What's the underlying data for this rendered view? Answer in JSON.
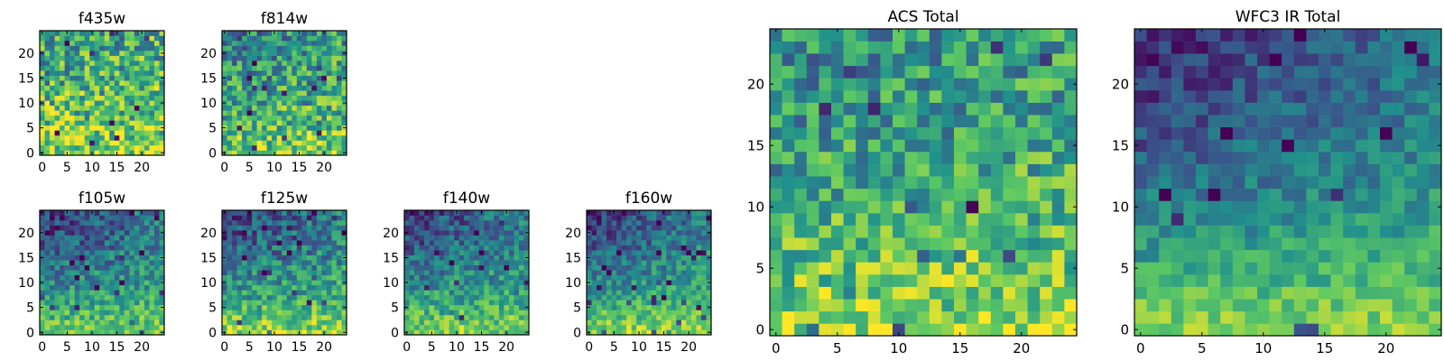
{
  "palette": {
    "colormap": "viridis",
    "stops": [
      "#440154",
      "#3b528b",
      "#21918c",
      "#5ec962",
      "#fde725"
    ]
  },
  "chart_data": [
    {
      "type": "heatmap",
      "title": "f435w",
      "grid_size": 25,
      "xlim": [
        0,
        25
      ],
      "ylim": [
        0,
        25
      ],
      "xticks": [
        "0",
        "5",
        "10",
        "15",
        "20"
      ],
      "yticks": [
        "0",
        "5",
        "10",
        "15",
        "20"
      ],
      "pattern": {
        "base": 0.62,
        "bottom_boost": 0.22,
        "topleft_drop": 0.05,
        "noise": 0.32,
        "seed": 11
      }
    },
    {
      "type": "heatmap",
      "title": "f814w",
      "grid_size": 25,
      "xlim": [
        0,
        25
      ],
      "ylim": [
        0,
        25
      ],
      "xticks": [
        "0",
        "5",
        "10",
        "15",
        "20"
      ],
      "yticks": [
        "0",
        "5",
        "10",
        "15",
        "20"
      ],
      "pattern": {
        "base": 0.56,
        "bottom_boost": 0.25,
        "topleft_drop": 0.12,
        "noise": 0.3,
        "seed": 23
      }
    },
    {
      "type": "heatmap",
      "title": "f105w",
      "grid_size": 25,
      "xlim": [
        0,
        25
      ],
      "ylim": [
        0,
        25
      ],
      "xticks": [
        "0",
        "5",
        "10",
        "15",
        "20"
      ],
      "yticks": [
        "0",
        "5",
        "10",
        "15",
        "20"
      ],
      "pattern": {
        "base": 0.42,
        "bottom_boost": 0.38,
        "topleft_drop": 0.25,
        "noise": 0.2,
        "seed": 37
      }
    },
    {
      "type": "heatmap",
      "title": "f125w",
      "grid_size": 25,
      "xlim": [
        0,
        25
      ],
      "ylim": [
        0,
        25
      ],
      "xticks": [
        "0",
        "5",
        "10",
        "15",
        "20"
      ],
      "yticks": [
        "0",
        "5",
        "10",
        "15",
        "20"
      ],
      "pattern": {
        "base": 0.44,
        "bottom_boost": 0.4,
        "topleft_drop": 0.25,
        "noise": 0.22,
        "seed": 41
      }
    },
    {
      "type": "heatmap",
      "title": "f140w",
      "grid_size": 25,
      "xlim": [
        0,
        25
      ],
      "ylim": [
        0,
        25
      ],
      "xticks": [
        "0",
        "5",
        "10",
        "15",
        "20"
      ],
      "yticks": [
        "0",
        "5",
        "10",
        "15",
        "20"
      ],
      "pattern": {
        "base": 0.43,
        "bottom_boost": 0.38,
        "topleft_drop": 0.25,
        "noise": 0.2,
        "seed": 53
      }
    },
    {
      "type": "heatmap",
      "title": "f160w",
      "grid_size": 25,
      "xlim": [
        0,
        25
      ],
      "ylim": [
        0,
        25
      ],
      "xticks": [
        "0",
        "5",
        "10",
        "15",
        "20"
      ],
      "yticks": [
        "0",
        "5",
        "10",
        "15",
        "20"
      ],
      "pattern": {
        "base": 0.44,
        "bottom_boost": 0.4,
        "topleft_drop": 0.28,
        "noise": 0.18,
        "seed": 67
      }
    },
    {
      "type": "heatmap",
      "title": "ACS Total",
      "grid_size": 25,
      "xlim": [
        0,
        25
      ],
      "ylim": [
        0,
        25
      ],
      "xticks": [
        "0",
        "5",
        "10",
        "15",
        "20"
      ],
      "yticks": [
        "0",
        "5",
        "10",
        "15",
        "20"
      ],
      "pattern": {
        "base": 0.56,
        "bottom_boost": 0.3,
        "topleft_drop": 0.08,
        "noise": 0.26,
        "seed": 79
      }
    },
    {
      "type": "heatmap",
      "title": "WFC3 IR Total",
      "grid_size": 25,
      "xlim": [
        0,
        25
      ],
      "ylim": [
        0,
        25
      ],
      "xticks": [
        "0",
        "5",
        "10",
        "15",
        "20"
      ],
      "yticks": [
        "0",
        "5",
        "10",
        "15",
        "20"
      ],
      "pattern": {
        "base": 0.4,
        "bottom_boost": 0.42,
        "topleft_drop": 0.3,
        "noise": 0.14,
        "seed": 97
      }
    }
  ]
}
